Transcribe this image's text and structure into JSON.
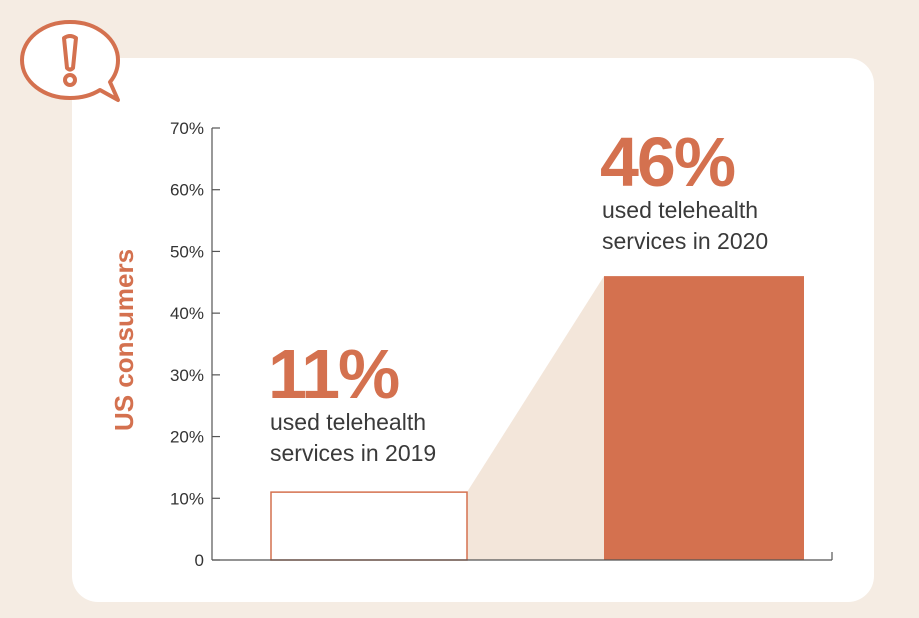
{
  "chart_data": {
    "type": "bar",
    "categories": [
      "2019",
      "2020"
    ],
    "values": [
      11,
      46
    ],
    "ylabel": "US consumers",
    "ylim": [
      0,
      70
    ],
    "yticks": [
      "0",
      "10%",
      "20%",
      "30%",
      "40%",
      "50%",
      "60%",
      "70%"
    ],
    "annotations": [
      {
        "value_label": "11%",
        "caption_line1": "used telehealth",
        "caption_line2": "services in 2019"
      },
      {
        "value_label": "46%",
        "caption_line1": "used telehealth",
        "caption_line2": "services in 2020"
      }
    ],
    "grid": false,
    "legend": "none"
  },
  "colors": {
    "accent": "#d4714f",
    "bar_2019_fill": "#ffffff",
    "bar_2019_stroke": "#d4714f",
    "connector": "#f3e6da",
    "axis": "#555555",
    "background": "#f5ece3"
  },
  "icons": {
    "alert": "exclamation-speech-bubble-icon"
  }
}
